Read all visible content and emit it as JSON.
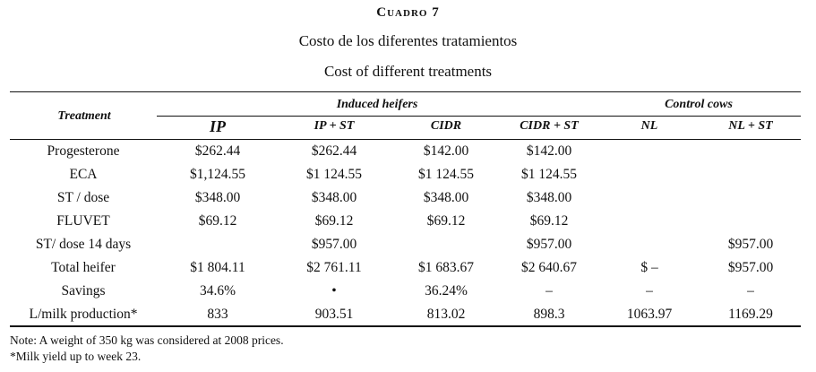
{
  "caption": {
    "label": "Cuadro 7",
    "title_es": "Costo de los diferentes tratamientos",
    "title_en": "Cost of different treatments"
  },
  "table": {
    "treatment_header": "Treatment",
    "groups": [
      {
        "label": "Induced heifers"
      },
      {
        "label": "Control cows"
      }
    ],
    "columns": [
      "IP",
      "IP + ST",
      "CIDR",
      "CIDR + ST",
      "NL",
      "NL + ST"
    ],
    "rows": [
      {
        "label": "Progesterone",
        "cells": [
          "$262.44",
          "$262.44",
          "$142.00",
          "$142.00",
          "",
          ""
        ]
      },
      {
        "label": "ECA",
        "cells": [
          "$1,124.55",
          "$1 124.55",
          "$1 124.55",
          "$1 124.55",
          "",
          ""
        ]
      },
      {
        "label": "ST / dose",
        "cells": [
          "$348.00",
          "$348.00",
          "$348.00",
          "$348.00",
          "",
          ""
        ]
      },
      {
        "label": "FLUVET",
        "cells": [
          "$69.12",
          "$69.12",
          "$69.12",
          "$69.12",
          "",
          ""
        ]
      },
      {
        "label": "ST/ dose 14 days",
        "cells": [
          "",
          "$957.00",
          "",
          "$957.00",
          "",
          "$957.00"
        ]
      },
      {
        "label": "Total heifer",
        "cells": [
          "$1 804.11",
          "$2 761.11",
          "$1 683.67",
          "$2 640.67",
          "$ –",
          "$957.00"
        ]
      },
      {
        "label": "Savings",
        "cells": [
          "34.6%",
          "•",
          "36.24%",
          "–",
          "–",
          "–"
        ]
      },
      {
        "label": "L/milk production*",
        "cells": [
          "833",
          "903.51",
          "813.02",
          "898.3",
          "1063.97",
          "1169.29"
        ]
      }
    ]
  },
  "notes": [
    "Note: A weight of 350 kg was considered at 2008 prices.",
    "*Milk yield up to week 23."
  ]
}
